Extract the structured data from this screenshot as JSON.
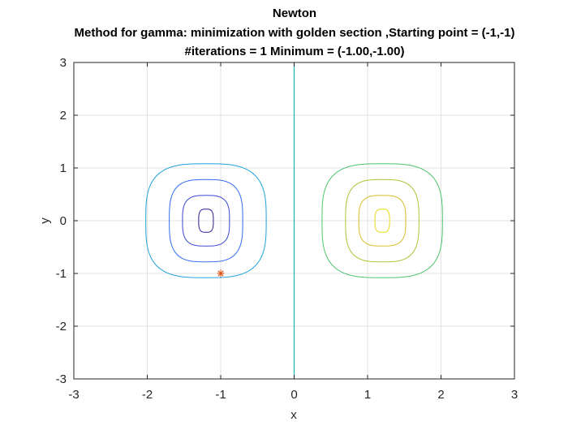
{
  "chart_data": {
    "type": "contour",
    "title_lines": [
      "Newton",
      "Method for gamma: minimization with golden section ,Starting point = (-1,-1)",
      "#iterations = 1 Minimum = (-1.00,-1.00)"
    ],
    "xlabel": "x",
    "ylabel": "y",
    "xlim": [
      -3,
      3
    ],
    "ylim": [
      -3,
      3
    ],
    "xticks": [
      -3,
      -2,
      -1,
      0,
      1,
      2,
      3
    ],
    "yticks": [
      -3,
      -2,
      -1,
      0,
      1,
      2,
      3
    ],
    "grid": true,
    "box": true,
    "contours": [
      {
        "cx": -1.2,
        "cy": 0,
        "rx": 0.1,
        "ry": 0.22,
        "color": "#2c1f8c"
      },
      {
        "cx": -1.2,
        "cy": 0,
        "rx": 0.32,
        "ry": 0.48,
        "color": "#3a45d6"
      },
      {
        "cx": -1.2,
        "cy": 0,
        "rx": 0.5,
        "ry": 0.78,
        "color": "#2e6cf0"
      },
      {
        "cx": -1.2,
        "cy": 0,
        "rx": 0.82,
        "ry": 1.08,
        "color": "#1fa2dd"
      },
      {
        "cx": 1.2,
        "cy": 0,
        "rx": 0.1,
        "ry": 0.22,
        "color": "#e8d91a"
      },
      {
        "cx": 1.2,
        "cy": 0,
        "rx": 0.32,
        "ry": 0.48,
        "color": "#d8bd2a"
      },
      {
        "cx": 1.2,
        "cy": 0,
        "rx": 0.5,
        "ry": 0.78,
        "color": "#a8c433"
      },
      {
        "cx": 1.2,
        "cy": 0,
        "rx": 0.82,
        "ry": 1.08,
        "color": "#4cc26e"
      }
    ],
    "vertical_line": {
      "x": 0,
      "color": "#1fb3b0"
    },
    "points": [
      {
        "x": -1,
        "y": -1,
        "marker": "*",
        "color": "#d95319"
      }
    ]
  }
}
